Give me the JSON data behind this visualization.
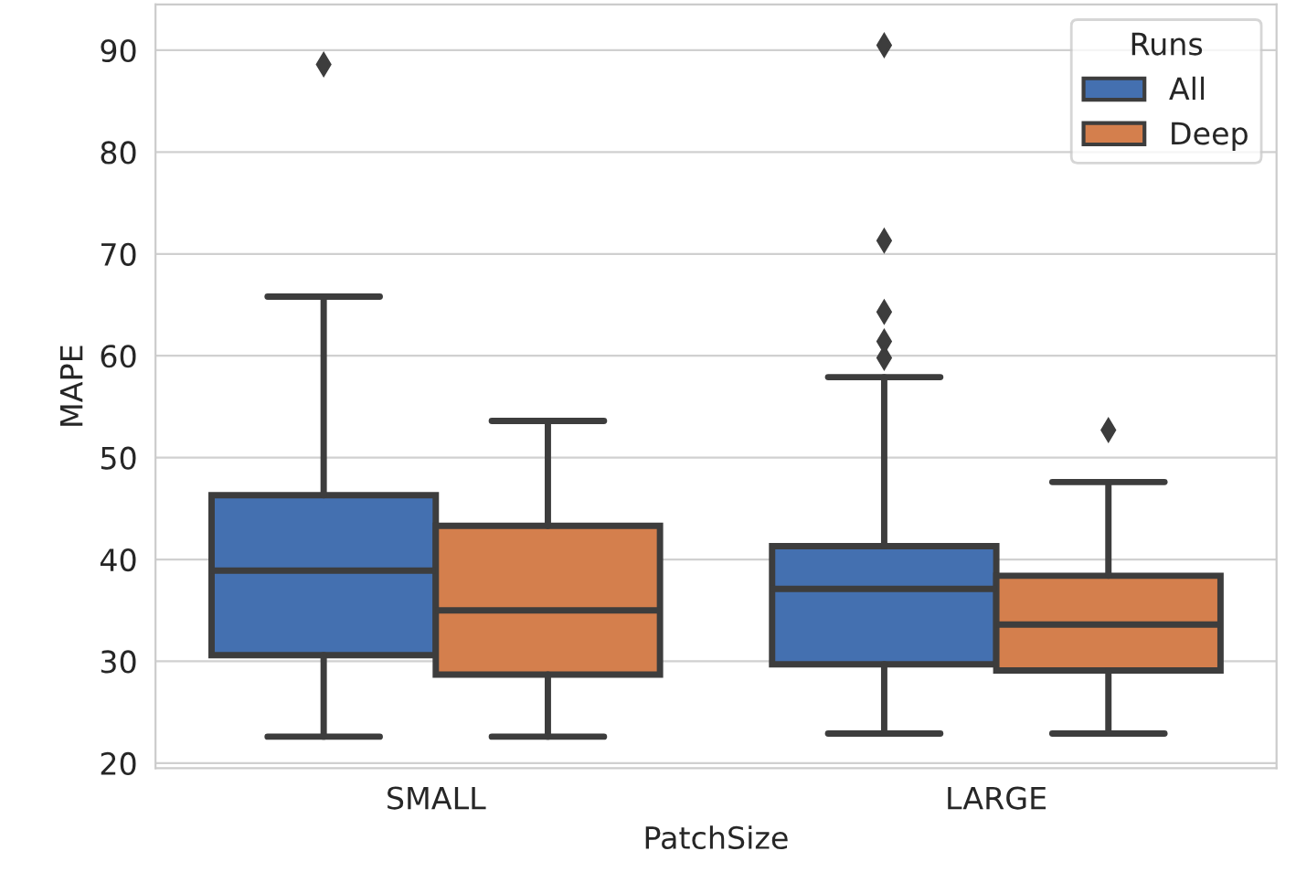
{
  "chart_data": {
    "type": "box",
    "xlabel": "PatchSize",
    "ylabel": "MAPE",
    "legend_title": "Runs",
    "categories": [
      "SMALL",
      "LARGE"
    ],
    "series": [
      {
        "name": "All",
        "color": "#4470b0",
        "boxes": [
          {
            "low": 22.6,
            "q1": 30.6,
            "median": 38.9,
            "q3": 46.3,
            "high": 65.8,
            "outliers": [
              88.6
            ]
          },
          {
            "low": 22.9,
            "q1": 29.7,
            "median": 37.1,
            "q3": 41.3,
            "high": 57.9,
            "outliers": [
              90.5,
              71.3,
              64.3,
              61.4,
              59.8
            ]
          }
        ]
      },
      {
        "name": "Deep",
        "color": "#d47f4d",
        "boxes": [
          {
            "low": 22.6,
            "q1": 28.7,
            "median": 35,
            "q3": 43.3,
            "high": 53.6
          },
          {
            "low": 22.9,
            "q1": 29.1,
            "median": 33.6,
            "q3": 38.4,
            "high": 47.6,
            "outliers": [
              52.7
            ]
          }
        ]
      }
    ],
    "ylim": [
      19.5,
      94.5
    ],
    "yticks": [
      20,
      30,
      40,
      50,
      60,
      70,
      80,
      90
    ],
    "grid": "y",
    "legend": "top right",
    "marker": "diamond"
  }
}
